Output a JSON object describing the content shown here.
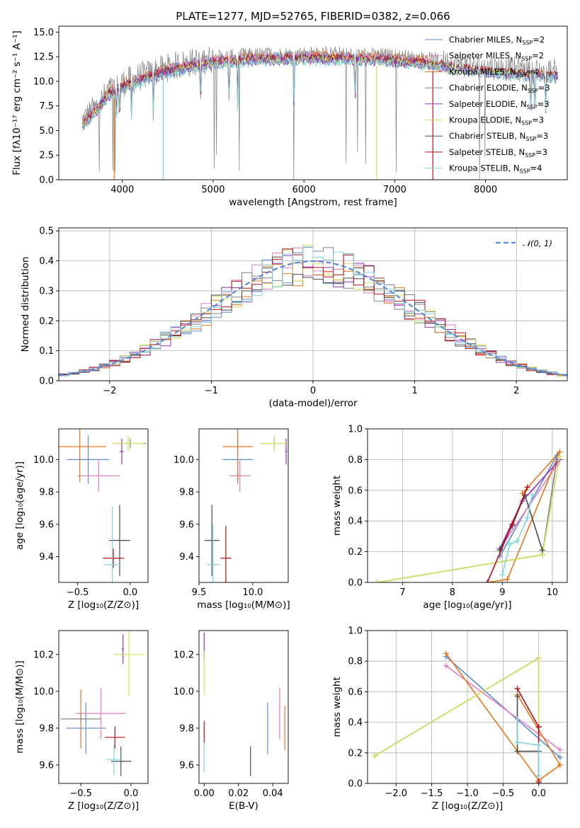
{
  "title": "PLATE=1277, MJD=52765, FIBERID=0382, z=0.066",
  "colors": {
    "Chabrier MILES": "#5b8bd6",
    "Salpeter MILES": "#e57ec1",
    "Kroupa MILES": "#e8751a",
    "Chabrier ELODIE": "#808080",
    "Salpeter ELODIE": "#9b32b8",
    "Kroupa ELODIE": "#d4e05a",
    "Chabrier STELIB": "#4a4a4a",
    "Salpeter STELIB": "#b5121b",
    "Kroupa STELIB": "#7fd6dd",
    "normal": "#5b8bd6"
  },
  "legend": [
    {
      "name": "Chabrier MILES",
      "label": "Chabrier MILES, N",
      "sub": "SSP",
      "tail": "=2"
    },
    {
      "name": "Salpeter MILES",
      "label": "Salpeter MILES, N",
      "sub": "SSP",
      "tail": "=2"
    },
    {
      "name": "Kroupa MILES",
      "label": "Kroupa MILES, N",
      "sub": "SSP",
      "tail": "=4"
    },
    {
      "name": "Chabrier ELODIE",
      "label": "Chabrier ELODIE, N",
      "sub": "SSP",
      "tail": "=3"
    },
    {
      "name": "Salpeter ELODIE",
      "label": "Salpeter ELODIE, N",
      "sub": "SSP",
      "tail": "=3"
    },
    {
      "name": "Kroupa ELODIE",
      "label": "Kroupa ELODIE, N",
      "sub": "SSP",
      "tail": "=3"
    },
    {
      "name": "Chabrier STELIB",
      "label": "Chabrier STELIB, N",
      "sub": "SSP",
      "tail": "=3"
    },
    {
      "name": "Salpeter STELIB",
      "label": "Salpeter STELIB, N",
      "sub": "SSP",
      "tail": "=3"
    },
    {
      "name": "Kroupa STELIB",
      "label": "Kroupa STELIB, N",
      "sub": "SSP",
      "tail": "=4"
    }
  ],
  "chart_data": [
    {
      "type": "line",
      "panel": "spectrum",
      "xlabel": "wavelength [Angstrom, rest frame]",
      "ylabel": "Flux [fλ10⁻¹⁷ erg cm⁻² s⁻¹ A⁻¹]",
      "xlim": [
        3300,
        8900
      ],
      "ylim": [
        0,
        15.6
      ],
      "xticks": [
        4000,
        5000,
        6000,
        7000,
        8000
      ],
      "yticks": [
        0.0,
        2.5,
        5.0,
        7.5,
        10.0,
        12.5,
        15.0
      ],
      "continuum": {
        "x": [
          3560,
          3650,
          3750,
          3850,
          4000,
          4200,
          4500,
          4800,
          5000,
          5300,
          5600,
          6000,
          6300,
          6600,
          6900,
          7200,
          7500,
          7800,
          8200,
          8500,
          8800
        ],
        "y": [
          6.0,
          6.8,
          7.8,
          9.0,
          9.8,
          10.5,
          11.4,
          12.0,
          12.3,
          12.5,
          12.6,
          12.7,
          12.7,
          12.6,
          12.5,
          12.3,
          12.0,
          11.6,
          11.3,
          11.1,
          11.0
        ]
      },
      "absorption_lines": [
        3934,
        3969,
        4102,
        4341,
        4861,
        5175,
        5270,
        5890,
        6563,
        8498,
        8542,
        8662
      ]
    },
    {
      "type": "line",
      "panel": "residual-distribution",
      "xlabel": "(data-model)/error",
      "ylabel": "Normed distribution",
      "xlim": [
        -2.5,
        2.5
      ],
      "ylim": [
        0,
        0.51
      ],
      "xticks": [
        -2,
        -1,
        0,
        1,
        2
      ],
      "yticks": [
        0.0,
        0.1,
        0.2,
        0.3,
        0.4,
        0.5
      ],
      "grid": true,
      "legend_label": "𝒩(0, 1)",
      "bin_width": 0.1
    },
    {
      "type": "scatter",
      "panel": "age-vs-Z",
      "xlabel": "Z [log₁₀(Z/Z⊙)]",
      "ylabel": "age  [log₁₀(age/yr)]",
      "xlim": [
        -0.68,
        0.17
      ],
      "ylim": [
        9.24,
        10.19
      ],
      "xticks": [
        -0.5,
        0.0
      ],
      "yticks": [
        9.4,
        9.6,
        9.8,
        10.0
      ],
      "points": [
        {
          "s": "Chabrier MILES",
          "x": -0.4,
          "xe": 0.2,
          "y": 10.0,
          "ye": 0.15
        },
        {
          "s": "Salpeter MILES",
          "x": -0.3,
          "xe": 0.2,
          "y": 9.9,
          "ye": 0.1
        },
        {
          "s": "Kroupa MILES",
          "x": -0.48,
          "xe": 0.25,
          "y": 10.08,
          "ye": 0.22
        },
        {
          "s": "Chabrier ELODIE",
          "x": 0.0,
          "xe": 0.15,
          "y": 10.1,
          "ye": 0.03
        },
        {
          "s": "Salpeter ELODIE",
          "x": -0.08,
          "xe": 0.02,
          "y": 10.05,
          "ye": 0.08
        },
        {
          "s": "Kroupa ELODIE",
          "x": -0.02,
          "xe": 0.15,
          "y": 10.1,
          "ye": 0.05
        },
        {
          "s": "Chabrier STELIB",
          "x": -0.1,
          "xe": 0.1,
          "y": 9.5,
          "ye": 0.22
        },
        {
          "s": "Salpeter STELIB",
          "x": -0.16,
          "xe": 0.1,
          "y": 9.39,
          "ye": 0.06
        },
        {
          "s": "Kroupa STELIB",
          "x": -0.17,
          "xe": 0.08,
          "y": 9.35,
          "ye": 0.36
        }
      ]
    },
    {
      "type": "scatter",
      "panel": "age-vs-mass",
      "xlabel": "mass [log₁₀(M/M⊙)]",
      "xlim": [
        9.5,
        10.33
      ],
      "ylim": [
        9.24,
        10.19
      ],
      "xticks": [
        9.5,
        10.0
      ],
      "yticks": [
        9.4,
        9.6,
        9.8,
        10.0
      ],
      "points": [
        {
          "s": "Chabrier MILES",
          "x": 9.86,
          "xe": 0.14,
          "y": 10.0,
          "ye": 0.15
        },
        {
          "s": "Salpeter MILES",
          "x": 9.88,
          "xe": 0.1,
          "y": 9.9,
          "ye": 0.1
        },
        {
          "s": "Kroupa MILES",
          "x": 9.86,
          "xe": 0.14,
          "y": 10.08,
          "ye": 0.22
        },
        {
          "s": "Chabrier ELODIE",
          "x": 10.2,
          "xe": 0.13,
          "y": 10.1,
          "ye": 0.03
        },
        {
          "s": "Salpeter ELODIE",
          "x": 10.31,
          "xe": 0.01,
          "y": 10.05,
          "ye": 0.08
        },
        {
          "s": "Kroupa ELODIE",
          "x": 10.2,
          "xe": 0.13,
          "y": 10.1,
          "ye": 0.05
        },
        {
          "s": "Chabrier STELIB",
          "x": 9.62,
          "xe": 0.07,
          "y": 9.5,
          "ye": 0.22
        },
        {
          "s": "Salpeter STELIB",
          "x": 9.75,
          "xe": 0.05,
          "y": 9.39,
          "ye": 0.2
        },
        {
          "s": "Kroupa STELIB",
          "x": 9.63,
          "xe": 0.06,
          "y": 9.35,
          "ye": 0.25
        }
      ]
    },
    {
      "type": "line",
      "panel": "mass-weight-vs-age",
      "xlabel": "age  [log₁₀(age/yr)]",
      "ylabel": "mass weight",
      "xlim": [
        6.3,
        10.3
      ],
      "ylim": [
        0,
        1.0
      ],
      "xticks": [
        7,
        8,
        9,
        10
      ],
      "yticks": [
        0.0,
        0.2,
        0.4,
        0.6,
        0.8,
        1.0
      ],
      "grid": true,
      "series": [
        {
          "s": "Chabrier MILES",
          "x": [
            8.95,
            10.1
          ],
          "y": [
            0.17,
            0.83
          ]
        },
        {
          "s": "Salpeter MILES",
          "x": [
            8.95,
            10.1
          ],
          "y": [
            0.22,
            0.77
          ]
        },
        {
          "s": "Kroupa MILES",
          "x": [
            8.7,
            9.1,
            10.15,
            9.4
          ],
          "y": [
            0.0,
            0.02,
            0.85,
            0.58
          ]
        },
        {
          "s": "Chabrier ELODIE",
          "x": [
            6.5,
            9.8,
            10.1
          ],
          "y": [
            0.0,
            0.18,
            0.82
          ]
        },
        {
          "s": "Salpeter ELODIE",
          "x": [
            8.95,
            9.4,
            10.15
          ],
          "y": [
            0.22,
            0.53,
            0.8
          ]
        },
        {
          "s": "Kroupa ELODIE",
          "x": [
            6.5,
            9.8,
            10.15
          ],
          "y": [
            0.0,
            0.18,
            0.82
          ]
        },
        {
          "s": "Chabrier STELIB",
          "x": [
            8.95,
            9.2,
            9.45,
            9.8
          ],
          "y": [
            0.21,
            0.37,
            0.57,
            0.21
          ]
        },
        {
          "s": "Salpeter STELIB",
          "x": [
            8.7,
            9.2,
            9.5
          ],
          "y": [
            0.0,
            0.38,
            0.62
          ]
        },
        {
          "s": "Kroupa STELIB",
          "x": [
            9.0,
            9.15,
            9.3,
            9.5,
            9.6
          ],
          "y": [
            0.05,
            0.25,
            0.27,
            0.42,
            0.57
          ]
        }
      ]
    },
    {
      "type": "scatter",
      "panel": "mass-vs-Z",
      "xlabel": "Z [log₁₀(Z/Z⊙)]",
      "ylabel": "mass [log₁₀(M/M⊙)]",
      "xlim": [
        -0.72,
        0.17
      ],
      "ylim": [
        9.5,
        10.33
      ],
      "xticks": [
        -0.5,
        0.0
      ],
      "yticks": [
        9.6,
        9.8,
        10.0,
        10.2
      ],
      "points": [
        {
          "s": "Chabrier MILES",
          "x": -0.45,
          "xe": 0.2,
          "y": 9.8,
          "ye": 0.14
        },
        {
          "s": "Salpeter MILES",
          "x": -0.3,
          "xe": 0.25,
          "y": 9.88,
          "ye": 0.14
        },
        {
          "s": "Kroupa MILES",
          "x": -0.5,
          "xe": 0.2,
          "y": 9.85,
          "ye": 0.16
        },
        {
          "s": "Chabrier ELODIE",
          "x": -0.5,
          "xe": 0.2,
          "y": 9.85,
          "ye": 0.01
        },
        {
          "s": "Salpeter ELODIE",
          "x": -0.08,
          "xe": 0.01,
          "y": 10.23,
          "ye": 0.08
        },
        {
          "s": "Kroupa ELODIE",
          "x": -0.02,
          "xe": 0.15,
          "y": 10.2,
          "ye": 0.23
        },
        {
          "s": "Chabrier STELIB",
          "x": -0.1,
          "xe": 0.1,
          "y": 9.62,
          "ye": 0.08
        },
        {
          "s": "Salpeter STELIB",
          "x": -0.16,
          "xe": 0.1,
          "y": 9.75,
          "ye": 0.06
        },
        {
          "s": "Kroupa STELIB",
          "x": -0.17,
          "xe": 0.08,
          "y": 9.63,
          "ye": 0.08
        }
      ]
    },
    {
      "type": "scatter",
      "panel": "mass-vs-EBV",
      "xlabel": "E(B-V)",
      "xlim": [
        -0.003,
        0.049
      ],
      "ylim": [
        9.5,
        10.33
      ],
      "xticks": [
        0.0,
        0.02,
        0.04
      ],
      "yticks": [
        9.6,
        9.8,
        10.0,
        10.2
      ],
      "points": [
        {
          "s": "Chabrier MILES",
          "x": 0.037,
          "y": 9.8,
          "ye": 0.14
        },
        {
          "s": "Salpeter MILES",
          "x": 0.044,
          "y": 9.88,
          "ye": 0.14
        },
        {
          "s": "Kroupa MILES",
          "x": 0.047,
          "y": 9.8,
          "ye": 0.12
        },
        {
          "s": "Chabrier ELODIE",
          "x": 0.0,
          "y": 10.2,
          "ye": 0.01
        },
        {
          "s": "Salpeter ELODIE",
          "x": 0.0,
          "y": 10.25,
          "ye": 0.07
        },
        {
          "s": "Kroupa ELODIE",
          "x": 0.0,
          "y": 10.1,
          "ye": 0.12
        },
        {
          "s": "Chabrier STELIB",
          "x": 0.027,
          "y": 9.62,
          "ye": 0.08
        },
        {
          "s": "Salpeter STELIB",
          "x": 0.0,
          "y": 9.78,
          "ye": 0.06
        },
        {
          "s": "Kroupa STELIB",
          "x": 0.0,
          "y": 9.64,
          "ye": 0.08
        }
      ]
    },
    {
      "type": "line",
      "panel": "mass-weight-vs-Z",
      "xlabel": "Z [log₁₀(Z/Z⊙)]",
      "ylabel": "mass weight",
      "xlim": [
        -2.4,
        0.4
      ],
      "ylim": [
        0,
        1.0
      ],
      "xticks": [
        -2.0,
        -1.5,
        -1.0,
        -0.5,
        0.0
      ],
      "yticks": [
        0.0,
        0.2,
        0.4,
        0.6,
        0.8,
        1.0
      ],
      "grid": true,
      "series": [
        {
          "s": "Chabrier MILES",
          "x": [
            -1.3,
            0.3
          ],
          "y": [
            0.83,
            0.17
          ]
        },
        {
          "s": "Salpeter MILES",
          "x": [
            -1.3,
            0.3
          ],
          "y": [
            0.77,
            0.22
          ]
        },
        {
          "s": "Kroupa MILES",
          "x": [
            -1.3,
            0.0,
            0.3,
            -0.3
          ],
          "y": [
            0.85,
            0.02,
            0.12,
            0.58
          ]
        },
        {
          "s": "Chabrier ELODIE",
          "x": [
            -2.3,
            0.0,
            0.0
          ],
          "y": [
            0.18,
            0.82,
            0.0
          ]
        },
        {
          "s": "Salpeter ELODIE",
          "x": [
            0.0,
            0.0
          ],
          "y": [
            0.0,
            0.37
          ]
        },
        {
          "s": "Kroupa ELODIE",
          "x": [
            -2.3,
            0.0,
            0.0
          ],
          "y": [
            0.18,
            0.82,
            0.01
          ]
        },
        {
          "s": "Chabrier STELIB",
          "x": [
            -0.3,
            -0.3,
            0.0
          ],
          "y": [
            0.57,
            0.21,
            0.21
          ]
        },
        {
          "s": "Salpeter STELIB",
          "x": [
            -0.3,
            0.0,
            0.0
          ],
          "y": [
            0.62,
            0.37,
            0.01
          ]
        },
        {
          "s": "Kroupa STELIB",
          "x": [
            -0.3,
            -0.3,
            0.0,
            0.0
          ],
          "y": [
            0.42,
            0.27,
            0.25,
            0.05
          ]
        }
      ]
    }
  ]
}
